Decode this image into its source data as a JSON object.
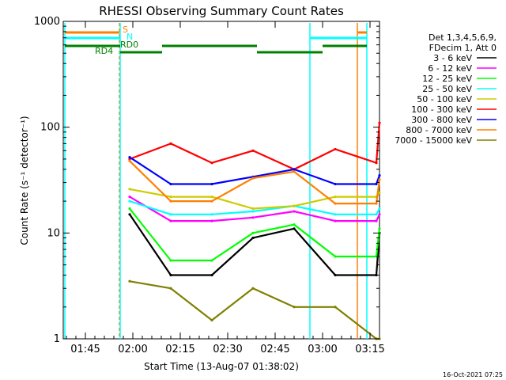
{
  "chart_data": {
    "type": "line",
    "title": "RHESSI Observing Summary Count Rates",
    "xlabel": "Start Time (13-Aug-07 01:38:02)",
    "ylabel": "Count Rate (s⁻¹ detector⁻¹)",
    "y_scale": "log",
    "ylim": [
      1,
      1000
    ],
    "xlim_minutes": [
      98.0,
      198.0
    ],
    "x_ticks": [
      {
        "label": "01:45",
        "minute": 105
      },
      {
        "label": "02:00",
        "minute": 120
      },
      {
        "label": "02:15",
        "minute": 135
      },
      {
        "label": "02:30",
        "minute": 150
      },
      {
        "label": "02:45",
        "minute": 165
      },
      {
        "label": "03:00",
        "minute": 180
      },
      {
        "label": "03:15",
        "minute": 195
      }
    ],
    "y_ticks": [
      "1",
      "10",
      "100",
      "1000"
    ],
    "legend_header": [
      "Det 1,3,4,5,6,9,",
      "FDecim 1, Att 0"
    ],
    "legend_position": "right",
    "series": [
      {
        "name": "3 - 6 keV",
        "color": "#000000",
        "values": [
          15,
          4,
          4,
          9,
          11,
          4,
          4,
          10
        ]
      },
      {
        "name": "6 - 12 keV",
        "color": "#ff00ff",
        "values": [
          22,
          13,
          13,
          14,
          16,
          13,
          13,
          15
        ]
      },
      {
        "name": "12 - 25 keV",
        "color": "#00ff00",
        "values": [
          17,
          5.5,
          5.5,
          10,
          12,
          6,
          6,
          11
        ]
      },
      {
        "name": "25 - 50 keV",
        "color": "#00ffff",
        "values": [
          20,
          15,
          15,
          16,
          18,
          15,
          15,
          17
        ]
      },
      {
        "name": "50 - 100 keV",
        "color": "#cccc00",
        "values": [
          26,
          22,
          22,
          17,
          18,
          22,
          22,
          24
        ]
      },
      {
        "name": "100 - 300 keV",
        "color": "#ff0000",
        "values": [
          50,
          70,
          46,
          60,
          40,
          62,
          46,
          110
        ]
      },
      {
        "name": "300 - 800 keV",
        "color": "#0000ff",
        "values": [
          52,
          29,
          29,
          34,
          40,
          29,
          29,
          35
        ]
      },
      {
        "name": "800 - 7000 keV",
        "color": "#ff8000",
        "values": [
          48,
          20,
          20,
          33,
          38,
          19,
          19,
          32
        ]
      },
      {
        "name": "7000 - 15000 keV",
        "color": "#808000",
        "values": [
          3.5,
          3,
          1.5,
          3,
          2,
          2,
          1,
          1
        ]
      }
    ],
    "series_x_minutes": [
      119,
      132,
      145,
      158,
      171,
      184,
      197,
      198
    ],
    "markers": [
      {
        "label": "S",
        "color": "#ff8000"
      },
      {
        "label": "N",
        "color": "#00ffff"
      },
      {
        "label": "RD0",
        "color": "#008000"
      },
      {
        "label": "RD4",
        "color": "#008000"
      }
    ],
    "timestamp": "16-Oct-2021 07:25"
  }
}
